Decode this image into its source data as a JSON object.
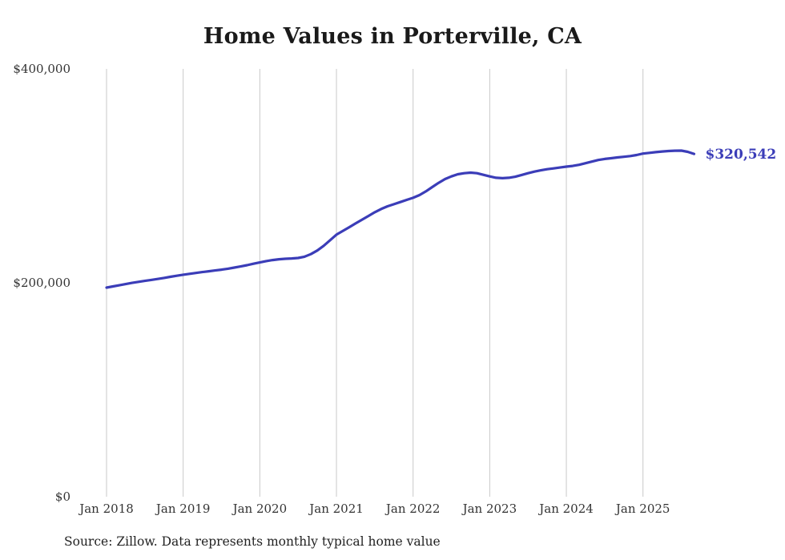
{
  "page": {
    "title": "Home Values in Porterville, CA",
    "source_note": "Source: Zillow. Data represents monthly typical home value"
  },
  "style": {
    "line_color": "#3b3db8",
    "grid_color": "#c9c9c9",
    "axis_text_color": "#333333",
    "end_label_color": "#3b3db8"
  },
  "chart_data": {
    "type": "line",
    "title": "Home Values in Porterville, CA",
    "xlabel": "",
    "ylabel": "",
    "ylim": [
      0,
      400000
    ],
    "grid": "vertical-only",
    "legend_position": "none",
    "end_label": "$320,542",
    "end_value": 320542,
    "y_ticks": [
      {
        "value": 0,
        "label": "$0"
      },
      {
        "value": 200000,
        "label": "$200,000"
      },
      {
        "value": 400000,
        "label": "$400,000"
      }
    ],
    "x_tick_labels": [
      "Jan 2018",
      "Jan 2019",
      "Jan 2020",
      "Jan 2021",
      "Jan 2022",
      "Jan 2023",
      "Jan 2024",
      "Jan 2025"
    ],
    "x_tick_month_indexes": [
      0,
      12,
      24,
      36,
      48,
      60,
      72,
      84
    ],
    "months": [
      "2018-01",
      "2018-02",
      "2018-03",
      "2018-04",
      "2018-05",
      "2018-06",
      "2018-07",
      "2018-08",
      "2018-09",
      "2018-10",
      "2018-11",
      "2018-12",
      "2019-01",
      "2019-02",
      "2019-03",
      "2019-04",
      "2019-05",
      "2019-06",
      "2019-07",
      "2019-08",
      "2019-09",
      "2019-10",
      "2019-11",
      "2019-12",
      "2020-01",
      "2020-02",
      "2020-03",
      "2020-04",
      "2020-05",
      "2020-06",
      "2020-07",
      "2020-08",
      "2020-09",
      "2020-10",
      "2020-11",
      "2020-12",
      "2021-01",
      "2021-02",
      "2021-03",
      "2021-04",
      "2021-05",
      "2021-06",
      "2021-07",
      "2021-08",
      "2021-09",
      "2021-10",
      "2021-11",
      "2021-12",
      "2022-01",
      "2022-02",
      "2022-03",
      "2022-04",
      "2022-05",
      "2022-06",
      "2022-07",
      "2022-08",
      "2022-09",
      "2022-10",
      "2022-11",
      "2022-12",
      "2023-01",
      "2023-02",
      "2023-03",
      "2023-04",
      "2023-05",
      "2023-06",
      "2023-07",
      "2023-08",
      "2023-09",
      "2023-10",
      "2023-11",
      "2023-12",
      "2024-01",
      "2024-02",
      "2024-03",
      "2024-04",
      "2024-05",
      "2024-06",
      "2024-07",
      "2024-08",
      "2024-09",
      "2024-10",
      "2024-11",
      "2024-12",
      "2025-01",
      "2025-02",
      "2025-03",
      "2025-04",
      "2025-05",
      "2025-06",
      "2025-07",
      "2025-08",
      "2025-09"
    ],
    "series": [
      {
        "name": "Typical home value",
        "values": [
          195500,
          196600,
          197700,
          198800,
          199900,
          200900,
          201800,
          202700,
          203600,
          204600,
          205600,
          206600,
          207600,
          208400,
          209200,
          210000,
          210800,
          211500,
          212300,
          213200,
          214200,
          215300,
          216500,
          217800,
          219000,
          220300,
          221300,
          222000,
          222500,
          222800,
          223200,
          224400,
          226800,
          230200,
          234600,
          239800,
          245000,
          248500,
          252000,
          255500,
          259000,
          262500,
          266000,
          269000,
          271500,
          273500,
          275500,
          277500,
          279500,
          282000,
          285500,
          289500,
          293500,
          297000,
          299500,
          301500,
          302500,
          303000,
          302500,
          301000,
          299500,
          298200,
          297800,
          298200,
          299200,
          300800,
          302500,
          304000,
          305200,
          306200,
          307000,
          307800,
          308600,
          309300,
          310300,
          311800,
          313300,
          314800,
          315800,
          316500,
          317200,
          317800,
          318500,
          319500,
          320800,
          321500,
          322200,
          322800,
          323200,
          323500,
          323600,
          322500,
          320542
        ]
      }
    ],
    "source": "Source: Zillow. Data represents monthly typical home value"
  }
}
